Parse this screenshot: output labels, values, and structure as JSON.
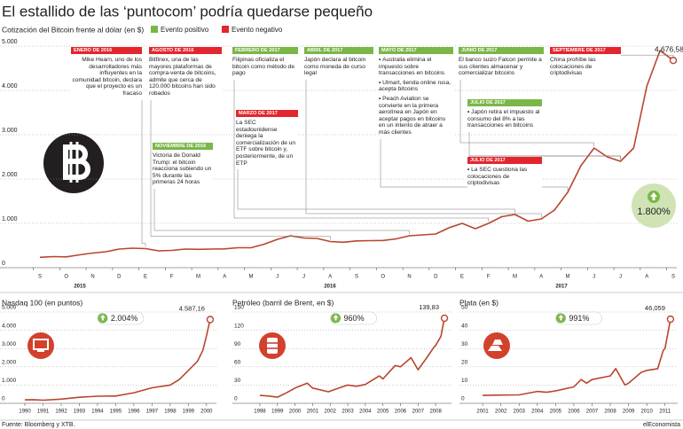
{
  "title": "El estallido de las ‘puntocom’ podría quedarse pequeño",
  "source": "Fuente: Bloomberg y XTB.",
  "brand": "elEconomista",
  "chart_data": [
    {
      "type": "line",
      "subtitle": "Cotización del Bitcoin frente al dólar (en $)",
      "legend": {
        "positive": "Evento positivo",
        "negative": "Evento negativo"
      },
      "colors": {
        "positive": "#7ab648",
        "negative": "#e3262e"
      },
      "color": "#b8452e",
      "categories": [
        "S",
        null,
        "O",
        null,
        "N",
        null,
        "D",
        null,
        "E",
        null,
        "F",
        null,
        "M",
        null,
        "A",
        null,
        "M",
        null,
        "J",
        null,
        "J",
        null,
        "A",
        null,
        "S",
        null,
        "O",
        null,
        "N",
        null,
        "D",
        null,
        "E",
        null,
        "F",
        null,
        "M",
        null,
        "A",
        null,
        "M",
        null,
        "J",
        null,
        "J",
        null,
        "A",
        null,
        "S"
      ],
      "values": [
        235,
        250,
        245,
        290,
        330,
        360,
        420,
        440,
        430,
        380,
        390,
        420,
        415,
        420,
        425,
        450,
        450,
        530,
        640,
        720,
        670,
        660,
        590,
        575,
        605,
        610,
        615,
        650,
        720,
        740,
        760,
        900,
        1000,
        880,
        1000,
        1150,
        1200,
        1050,
        1100,
        1300,
        1700,
        2300,
        2700,
        2500,
        2400,
        2700,
        4100,
        4900,
        4676.58
      ],
      "value_labels": [
        null,
        null,
        null,
        null,
        null,
        null,
        null,
        null,
        null,
        null,
        null,
        null,
        null,
        null,
        null,
        null,
        null,
        null,
        null,
        null,
        null,
        null,
        null,
        null,
        null,
        null,
        null,
        null,
        null,
        null,
        null,
        null,
        null,
        null,
        null,
        null,
        null,
        null,
        null,
        null,
        null,
        null,
        null,
        null,
        null,
        null,
        null,
        null,
        "4.676,58"
      ],
      "year_labels": [
        "2015",
        "2016",
        "2017"
      ],
      "ylim": [
        0,
        5000
      ],
      "yticks": [
        0,
        {
          "value": 1000,
          "label": "1.000"
        },
        {
          "value": 2000,
          "label": "2.000"
        },
        {
          "value": 3000,
          "label": "3.000"
        },
        {
          "value": 4000,
          "label": "4.000"
        },
        {
          "value": 5000,
          "label": "5.000"
        }
      ],
      "grid": true,
      "change_label": "1.800%",
      "events": [
        {
          "date": "ENERO DE 2016",
          "kind": "negative",
          "items": [
            "Mike Hearn, uno de los desarrolladores más influyentes en la comunidad bitcoin, declara que el proyecto es un fracaso"
          ]
        },
        {
          "date": "AGOSTO DE 2016",
          "kind": "negative",
          "items": [
            "Bitfinex, una de las mayores plataformas de compra-venta de bitcoins, admite que cerca de 120.000 bitcoins han sido robados"
          ]
        },
        {
          "date": "NOVIEMBRE DE 2016",
          "kind": "positive",
          "items": [
            "Victoria de Donald Trump: el bitcoin reacciona subiendo un 5% durante las primeras 24 horas"
          ]
        },
        {
          "date": "FEBRERO DE 2017",
          "kind": "positive",
          "items": [
            "Filipinas oficializa el bitcoin como método de pago"
          ]
        },
        {
          "date": "MARZO DE 2017",
          "kind": "negative",
          "items": [
            "La SEC estadounidense deniega la comercialización de un ETF sobre bitcoin y, posteriormente, de un ETP"
          ]
        },
        {
          "date": "ABRIL DE 2017",
          "kind": "positive",
          "items": [
            "Japón declara al bitcoin como moneda de curso legal"
          ]
        },
        {
          "date": "MAYO DE 2017",
          "kind": "positive",
          "items": [
            "Australia elimina el impuesto sobre transacciones en bitcoins",
            "Ulmart, tienda online rusa, acepta bitcoins",
            "Peach Aviation se convierte en la primera aerolínea en Japón en aceptar pagos en bitcoins en un intento de atraer a más clientes"
          ]
        },
        {
          "date": "JUNIO DE 2017",
          "kind": "positive",
          "items": [
            "El banco suizo Falcon permite a sus clientes almacenar y comercializar bitcoins"
          ]
        },
        {
          "date": "JULIO DE 2017",
          "kind": "positive",
          "items": [
            "Japón retira el impuesto al consumo del 8% a las transacciones en bitcoins"
          ]
        },
        {
          "date": "JULIO DE 2017",
          "kind": "negative",
          "items": [
            "La SEC cuestiona las colocaciones de criptodivisas"
          ]
        },
        {
          "date": "SEPTIEMBRE DE 2017",
          "kind": "negative",
          "items": [
            "China prohíbe las colocaciones de criptodivisas"
          ]
        }
      ]
    },
    {
      "type": "line",
      "title": "Nasdaq 100 (en puntos)",
      "color": "#b8452e",
      "change_label": "2.004%",
      "icon": "monitor",
      "x": [
        1990,
        1990.5,
        1991,
        1992,
        1993,
        1994,
        1995,
        1996,
        1997,
        1998,
        1998.5,
        1999,
        1999.5,
        1999.8,
        2000,
        2000.2
      ],
      "values": [
        190,
        200,
        170,
        230,
        330,
        390,
        400,
        580,
        850,
        1000,
        1300,
        1800,
        2300,
        2900,
        3700,
        4587.16
      ],
      "value_labels": [
        null,
        null,
        null,
        null,
        null,
        null,
        null,
        null,
        null,
        null,
        null,
        null,
        null,
        null,
        null,
        "4.587,16"
      ],
      "xlim": [
        1989.9,
        2000.35
      ],
      "xticks": [
        1990,
        1991,
        1992,
        1993,
        1994,
        1995,
        1996,
        1997,
        1998,
        1999,
        2000
      ],
      "ylim": [
        0,
        5000
      ],
      "yticks": [
        0,
        {
          "value": 1000,
          "label": "1.000"
        },
        {
          "value": 2000,
          "label": "2.000"
        },
        {
          "value": 3000,
          "label": "3.000"
        },
        {
          "value": 4000,
          "label": "4.000"
        },
        {
          "value": 5000,
          "label": "5.000"
        }
      ],
      "grid": true
    },
    {
      "type": "line",
      "title": "Petróleo (barril de Brent, en $)",
      "color": "#b8452e",
      "change_label": "960%",
      "icon": "barrel",
      "x": [
        1998,
        1998.5,
        1999,
        1999.5,
        2000,
        2000.7,
        2001,
        2001.9,
        2002.5,
        2003,
        2003.5,
        2004,
        2004.8,
        2005,
        2005.7,
        2006,
        2006.6,
        2007,
        2007.5,
        2007.9,
        2008,
        2008.3,
        2008.5
      ],
      "values": [
        13,
        12,
        10,
        17,
        25,
        33,
        25,
        19,
        25,
        30,
        28,
        31,
        45,
        40,
        62,
        60,
        75,
        55,
        75,
        92,
        95,
        110,
        139.83
      ],
      "value_labels": [
        null,
        null,
        null,
        null,
        null,
        null,
        null,
        null,
        null,
        null,
        null,
        null,
        null,
        null,
        null,
        null,
        null,
        null,
        null,
        null,
        null,
        null,
        "139,83"
      ],
      "xlim": [
        1997.7,
        2008.7
      ],
      "xticks": [
        1998,
        1999,
        2000,
        2001,
        2002,
        2003,
        2004,
        2005,
        2006,
        2007,
        2008
      ],
      "ylim": [
        0,
        150
      ],
      "yticks": [
        0,
        30,
        60,
        90,
        120,
        150
      ],
      "grid": true
    },
    {
      "type": "line",
      "title": "Plata (en $)",
      "color": "#b8452e",
      "change_label": "991%",
      "icon": "ingots",
      "x": [
        2001,
        2002,
        2003,
        2004,
        2004.5,
        2005,
        2006,
        2006.4,
        2006.7,
        2007,
        2008,
        2008.3,
        2008.8,
        2009,
        2009.7,
        2010,
        2010.6,
        2010.9,
        2011,
        2011.3
      ],
      "values": [
        4.3,
        4.5,
        4.6,
        6.5,
        6.0,
        6.8,
        9,
        13,
        11,
        13,
        15,
        19,
        10,
        11,
        17,
        18,
        19,
        29,
        30,
        46.059
      ],
      "value_labels": [
        null,
        null,
        null,
        null,
        null,
        null,
        null,
        null,
        null,
        null,
        null,
        null,
        null,
        null,
        null,
        null,
        null,
        null,
        null,
        "46,059"
      ],
      "xlim": [
        2000.8,
        2011.5
      ],
      "xticks": [
        2001,
        2002,
        2003,
        2004,
        2005,
        2006,
        2007,
        2008,
        2009,
        2010,
        2011
      ],
      "ylim": [
        0,
        50
      ],
      "yticks": [
        0,
        10,
        20,
        30,
        40,
        50
      ],
      "grid": true
    }
  ]
}
